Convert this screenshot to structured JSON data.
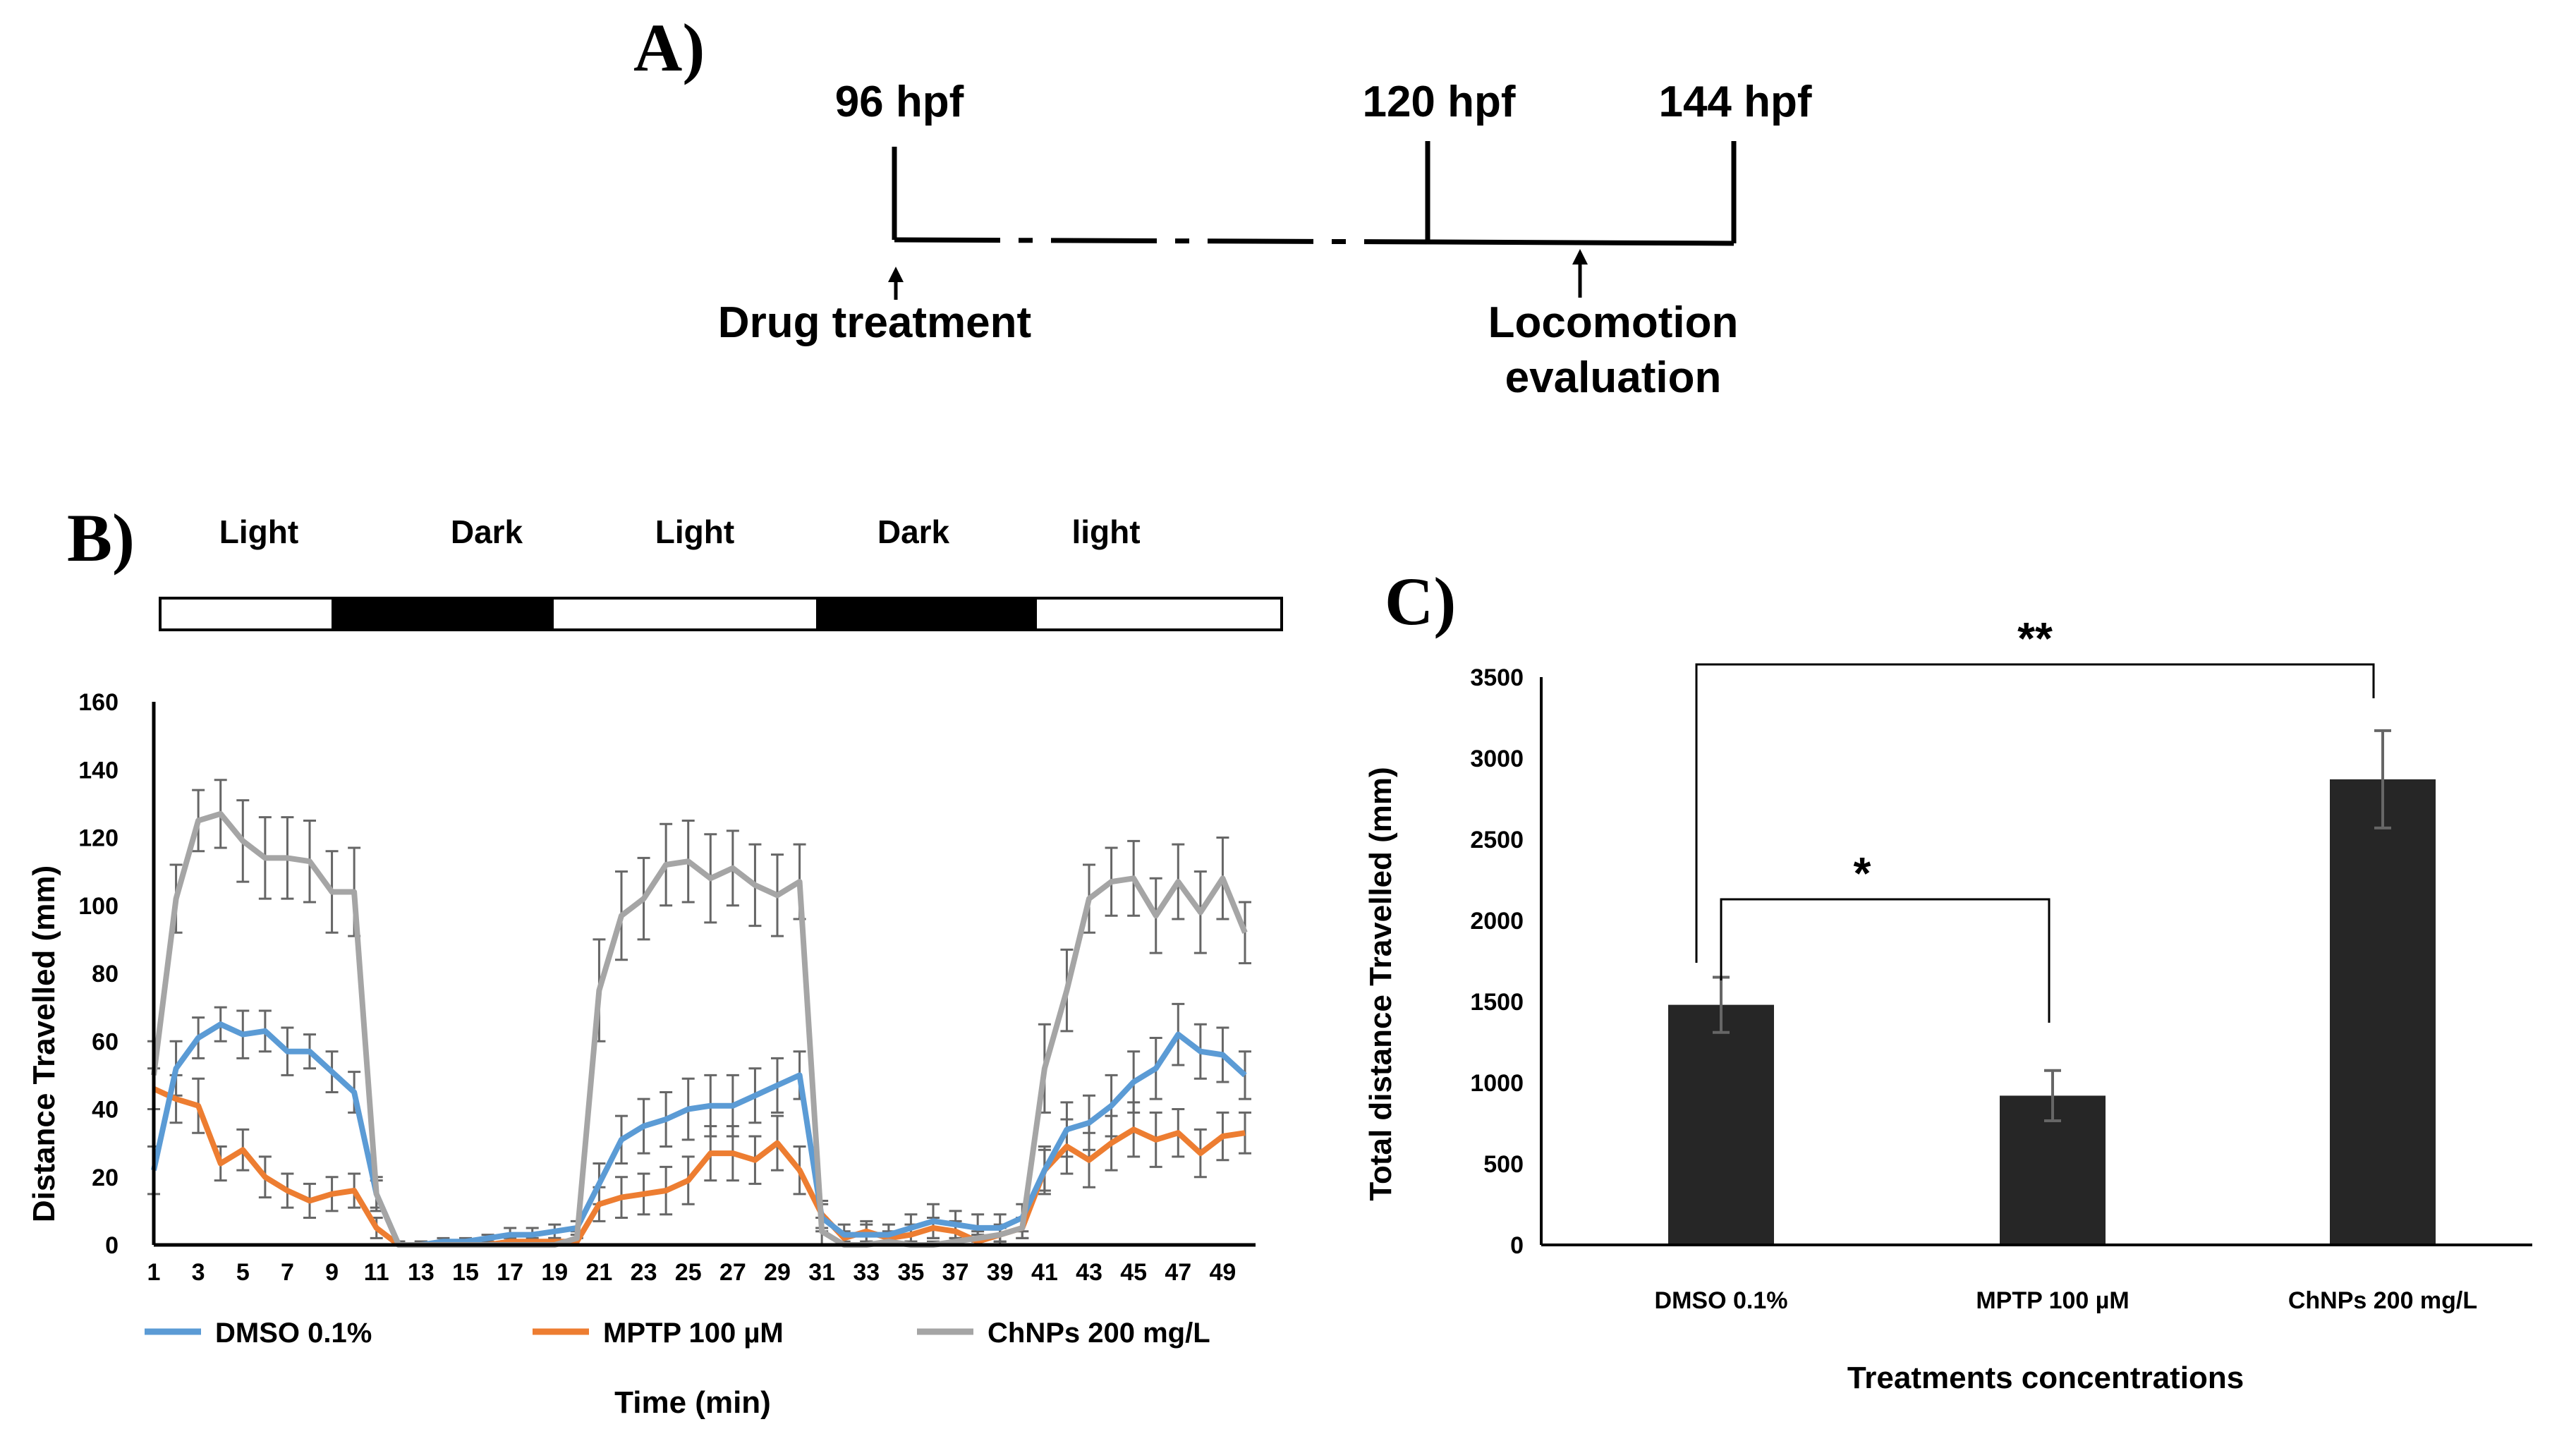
{
  "panel_a": {
    "label": "A)",
    "timepoints": [
      "96 hpf",
      "120 hpf",
      "144 hpf"
    ],
    "arrow_labels": {
      "drug": "Drug treatment",
      "locomotion_line1": "Locomotion",
      "locomotion_line2": "evaluation"
    }
  },
  "panel_b": {
    "label": "B)",
    "conditions": [
      "Light",
      "Dark",
      "Light",
      "Dark",
      "light"
    ]
  },
  "panel_c": {
    "label": "C)"
  },
  "chart_data": [
    {
      "type": "line",
      "title": "",
      "xlabel": "Time (min)",
      "ylabel": "Distance Travelled (mm)",
      "ylim": [
        0,
        160
      ],
      "yticks": [
        0,
        20,
        40,
        60,
        80,
        100,
        120,
        140,
        160
      ],
      "x": [
        1,
        2,
        3,
        4,
        5,
        6,
        7,
        8,
        9,
        10,
        11,
        12,
        13,
        14,
        15,
        16,
        17,
        18,
        19,
        20,
        21,
        22,
        23,
        24,
        25,
        26,
        27,
        28,
        29,
        30,
        31,
        32,
        33,
        34,
        35,
        36,
        37,
        38,
        39,
        40,
        41,
        42,
        43,
        44,
        45,
        46,
        47,
        48,
        49,
        50
      ],
      "xtick_labels": [
        "1",
        "3",
        "5",
        "7",
        "9",
        "11",
        "13",
        "15",
        "17",
        "19",
        "21",
        "23",
        "25",
        "27",
        "29",
        "31",
        "33",
        "35",
        "37",
        "39",
        "41",
        "43",
        "45",
        "47",
        "49"
      ],
      "series": [
        {
          "name": "DMSO 0.1%",
          "color": "#5B9BD5",
          "values": [
            22,
            52,
            61,
            65,
            62,
            63,
            57,
            57,
            51,
            45,
            15,
            0,
            0,
            1,
            1,
            2,
            3,
            3,
            4,
            5,
            18,
            31,
            35,
            37,
            40,
            41,
            41,
            44,
            47,
            50,
            8,
            3,
            3,
            3,
            5,
            7,
            6,
            5,
            5,
            8,
            22,
            34,
            36,
            41,
            48,
            52,
            62,
            57,
            56,
            50
          ],
          "errors": [
            7,
            8,
            6,
            5,
            7,
            6,
            7,
            5,
            6,
            6,
            4,
            1,
            1,
            1,
            1,
            1,
            2,
            2,
            2,
            2,
            6,
            7,
            8,
            8,
            9,
            9,
            9,
            8,
            8,
            7,
            4,
            3,
            3,
            3,
            4,
            5,
            4,
            4,
            4,
            4,
            6,
            8,
            8,
            9,
            9,
            9,
            9,
            8,
            8,
            7
          ]
        },
        {
          "name": "MPTP 100 µM",
          "color": "#ED7D31",
          "values": [
            46,
            43,
            41,
            24,
            28,
            20,
            16,
            13,
            15,
            16,
            5,
            0,
            0,
            0,
            0,
            0,
            1,
            1,
            1,
            1,
            12,
            14,
            15,
            16,
            19,
            27,
            27,
            25,
            30,
            22,
            9,
            2,
            4,
            2,
            3,
            5,
            4,
            1,
            3,
            5,
            22,
            29,
            25,
            30,
            34,
            31,
            33,
            27,
            32,
            33
          ],
          "errors": [
            6,
            7,
            8,
            5,
            6,
            6,
            5,
            5,
            5,
            5,
            3,
            1,
            1,
            1,
            1,
            1,
            1,
            1,
            1,
            1,
            5,
            6,
            6,
            7,
            7,
            8,
            8,
            7,
            8,
            7,
            4,
            2,
            3,
            2,
            3,
            3,
            3,
            2,
            3,
            3,
            7,
            8,
            8,
            8,
            8,
            8,
            7,
            7,
            7,
            6
          ]
        },
        {
          "name": "ChNPs 200 mg/L",
          "color": "#A5A5A5",
          "values": [
            50,
            102,
            125,
            127,
            119,
            114,
            114,
            113,
            104,
            104,
            15,
            0,
            0,
            0,
            0,
            0,
            0,
            0,
            0,
            2,
            75,
            97,
            102,
            112,
            113,
            108,
            111,
            106,
            103,
            107,
            4,
            0,
            0,
            1,
            0,
            0,
            1,
            2,
            3,
            5,
            52,
            75,
            102,
            107,
            108,
            97,
            107,
            98,
            108,
            92
          ],
          "errors": [
            10,
            10,
            9,
            10,
            12,
            12,
            12,
            12,
            12,
            13,
            5,
            1,
            1,
            1,
            1,
            1,
            1,
            1,
            1,
            2,
            15,
            13,
            12,
            12,
            12,
            13,
            11,
            12,
            12,
            11,
            4,
            1,
            1,
            1,
            1,
            1,
            1,
            2,
            2,
            3,
            13,
            12,
            10,
            10,
            11,
            11,
            11,
            12,
            12,
            9
          ]
        }
      ],
      "legend": "bottom"
    },
    {
      "type": "bar",
      "title": "",
      "xlabel": "Treatments concentrations",
      "ylabel": "Total distance Travelled (mm)",
      "ylim": [
        0,
        3500
      ],
      "yticks": [
        0,
        500,
        1000,
        1500,
        2000,
        2500,
        3000,
        3500
      ],
      "categories": [
        "DMSO 0.1%",
        "MPTP 100 µM",
        "ChNPs 200 mg/L"
      ],
      "values": [
        1480,
        920,
        2870
      ],
      "errors": [
        170,
        155,
        300
      ],
      "color": "#262626",
      "annotations": [
        {
          "from": "DMSO 0.1%",
          "to": "MPTP 100 µM",
          "label": "*"
        },
        {
          "from": "DMSO 0.1%",
          "to": "ChNPs 200 mg/L",
          "label": "**"
        }
      ]
    }
  ]
}
